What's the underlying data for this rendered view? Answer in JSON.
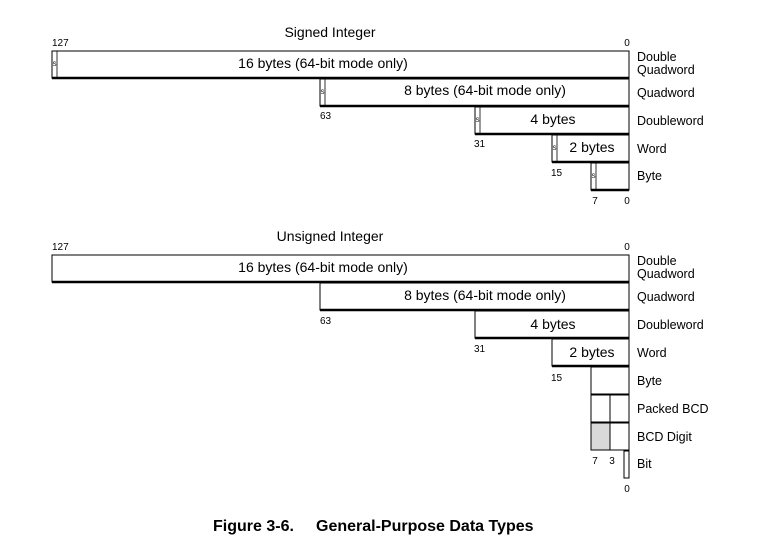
{
  "signed": {
    "title": "Signed Integer",
    "sign_marker": "S",
    "rows": [
      {
        "label": "16 bytes (64-bit mode only)",
        "type_line1": "Double",
        "type_line2": "Quadword",
        "low_bit": "127"
      },
      {
        "label": "8 bytes (64-bit mode only)",
        "type_line1": "Quadword",
        "type_line2": "",
        "low_bit": "63"
      },
      {
        "label": "4 bytes",
        "type_line1": "Doubleword",
        "type_line2": "",
        "low_bit": "31"
      },
      {
        "label": "2 bytes",
        "type_line1": "Word",
        "type_line2": "",
        "low_bit": "15"
      },
      {
        "label": "",
        "type_line1": "Byte",
        "type_line2": "",
        "low_bit": "7"
      }
    ],
    "zero_top": "0",
    "zero_bottom": "0"
  },
  "unsigned": {
    "title": "Unsigned Integer",
    "rows": [
      {
        "label": "16 bytes (64-bit mode only)",
        "type_line1": "Double",
        "type_line2": "Quadword",
        "low_bit": "127"
      },
      {
        "label": "8 bytes (64-bit mode only)",
        "type_line1": "Quadword",
        "type_line2": "",
        "low_bit": "63"
      },
      {
        "label": "4 bytes",
        "type_line1": "Doubleword",
        "type_line2": "",
        "low_bit": "31"
      },
      {
        "label": "2 bytes",
        "type_line1": "Word",
        "type_line2": "",
        "low_bit": "15"
      },
      {
        "label": "",
        "type_line1": "Byte",
        "type_line2": "",
        "low_bit": ""
      },
      {
        "label": "",
        "type_line1": "Packed BCD",
        "type_line2": "",
        "low_bit": ""
      },
      {
        "label": "",
        "type_line1": "BCD Digit",
        "type_line2": "",
        "low_bit": ""
      },
      {
        "label": "",
        "type_line1": "Bit",
        "type_line2": "",
        "low_bit": ""
      }
    ],
    "byte_bit_7": "7",
    "byte_bit_3": "3",
    "zero_top": "0",
    "zero_bottom": "0"
  },
  "colors": {
    "line": "#000000",
    "bcd_digit_fill": "#d9d9d9"
  },
  "caption": {
    "figure": "Figure 3-6.",
    "title": "General-Purpose Data Types"
  }
}
